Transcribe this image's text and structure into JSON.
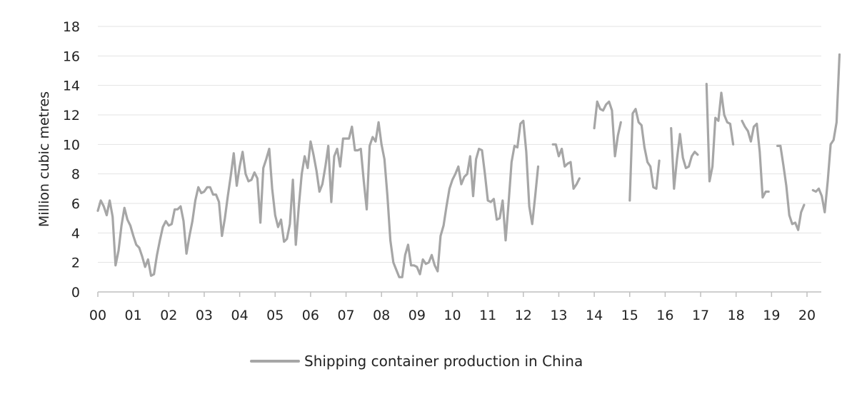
{
  "chart_data": {
    "type": "line",
    "title": "",
    "xlabel": "",
    "ylabel": "Million cubic metres",
    "ylim": [
      0,
      18
    ],
    "yticks": [
      0,
      2,
      4,
      6,
      8,
      10,
      12,
      14,
      16,
      18
    ],
    "x_tick_labels": [
      "00",
      "01",
      "02",
      "03",
      "04",
      "05",
      "06",
      "07",
      "08",
      "09",
      "10",
      "11",
      "12",
      "13",
      "14",
      "15",
      "16",
      "17",
      "18",
      "19",
      "20"
    ],
    "grid": "horizontal",
    "legend_position": "bottom-center",
    "colors": {
      "line": "#a6a6a6",
      "grid": "#e3e3e3",
      "axis": "#bfbfbf"
    },
    "series": [
      {
        "name": "Shipping container production in China",
        "x_start_year": 2000,
        "x_start_month": 1,
        "frequency": "monthly",
        "values": [
          5.5,
          6.2,
          5.8,
          5.2,
          6.2,
          5.1,
          1.8,
          2.8,
          4.5,
          5.7,
          4.9,
          4.5,
          3.8,
          3.2,
          3.0,
          2.4,
          1.7,
          2.2,
          1.1,
          1.2,
          2.5,
          3.5,
          4.4,
          4.8,
          4.5,
          4.6,
          5.6,
          5.6,
          5.8,
          4.8,
          2.6,
          3.8,
          4.8,
          6.2,
          7.1,
          6.7,
          6.8,
          7.1,
          7.1,
          6.6,
          6.6,
          6.1,
          3.8,
          5.0,
          6.5,
          7.9,
          9.4,
          7.2,
          8.5,
          9.5,
          8.0,
          7.5,
          7.6,
          8.1,
          7.7,
          4.7,
          8.4,
          9.0,
          9.7,
          7.0,
          5.2,
          4.4,
          4.9,
          3.4,
          3.6,
          4.6,
          7.6,
          3.2,
          5.8,
          8.0,
          9.2,
          8.4,
          10.2,
          9.3,
          8.2,
          6.8,
          7.3,
          8.5,
          9.9,
          6.1,
          9.2,
          9.7,
          8.5,
          10.4,
          10.4,
          10.4,
          11.2,
          9.6,
          9.6,
          9.7,
          7.5,
          5.6,
          9.9,
          10.5,
          10.2,
          11.5,
          10.0,
          9.0,
          6.5,
          3.5,
          2.0,
          1.5,
          1.0,
          1.0,
          2.5,
          3.2,
          1.8,
          1.8,
          1.7,
          1.2,
          2.2,
          1.9,
          2.0,
          2.5,
          1.8,
          1.4,
          3.8,
          4.5,
          5.8,
          7.0,
          7.6,
          8.0,
          8.5,
          7.3,
          7.8,
          8.0,
          9.2,
          6.5,
          9.0,
          9.7,
          9.6,
          8.0,
          6.2,
          6.1,
          6.3,
          4.9,
          5.0,
          6.2,
          3.5,
          6.0,
          8.8,
          9.9,
          9.8,
          11.4,
          11.6,
          9.5,
          5.8,
          4.6,
          6.5,
          8.5,
          null,
          null,
          null,
          null,
          10.0,
          10.0,
          9.2,
          9.7,
          8.5,
          8.7,
          8.8,
          7.0,
          7.3,
          7.7,
          null,
          null,
          null,
          null,
          11.1,
          12.9,
          12.4,
          12.3,
          12.7,
          12.9,
          12.3,
          9.2,
          10.6,
          11.5,
          null,
          null,
          6.2,
          12.1,
          12.4,
          11.5,
          11.3,
          9.8,
          8.8,
          8.5,
          7.1,
          7.0,
          8.9,
          null,
          null,
          null,
          11.1,
          7.0,
          9.0,
          10.7,
          9.1,
          8.4,
          8.5,
          9.2,
          9.5,
          9.3,
          null,
          null,
          14.1,
          7.5,
          8.5,
          11.8,
          11.6,
          13.5,
          12.0,
          11.5,
          11.4,
          10.0,
          null,
          null,
          11.6,
          11.2,
          10.9,
          10.2,
          11.2,
          11.4,
          9.5,
          6.4,
          6.8,
          6.8,
          null,
          null,
          9.9,
          9.9,
          8.6,
          7.2,
          5.2,
          4.6,
          4.7,
          4.2,
          5.4,
          5.9,
          null,
          null,
          6.9,
          6.8,
          7.0,
          6.5,
          5.4,
          7.5,
          10.0,
          10.3,
          11.5,
          16.1
        ]
      }
    ]
  }
}
